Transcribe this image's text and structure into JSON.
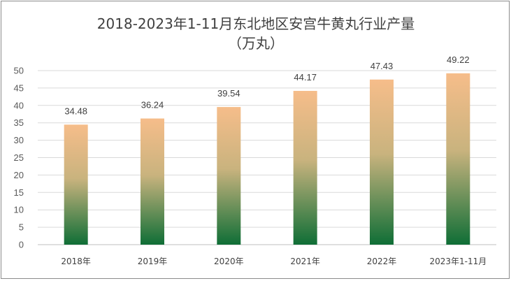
{
  "chart_data": {
    "type": "bar",
    "title": "2018-2023年1-11月东北地区安宫牛黄丸行业产量",
    "subtitle": "（万丸）",
    "categories": [
      "2018年",
      "2019年",
      "2020年",
      "2021年",
      "2022年",
      "2023年1-11月"
    ],
    "values": [
      34.48,
      36.24,
      39.54,
      44.17,
      47.43,
      49.22
    ],
    "data_labels": [
      "34.48",
      "36.24",
      "39.54",
      "44.17",
      "47.43",
      "49.22"
    ],
    "xlabel": "",
    "ylabel": "",
    "ylim": [
      0,
      50
    ],
    "yticks": [
      0,
      5,
      10,
      15,
      20,
      25,
      30,
      35,
      40,
      45,
      50
    ],
    "grid": true,
    "legend": "none",
    "bar_gradient_top": "#f6bd8a",
    "bar_gradient_bottom": "#0f6e36"
  }
}
